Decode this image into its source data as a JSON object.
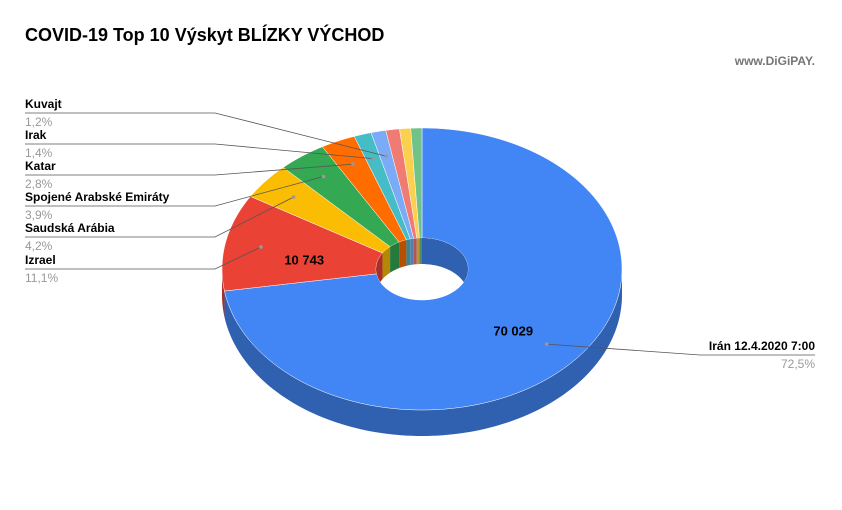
{
  "chart_data": {
    "type": "pie",
    "title": "COVID-19 Top 10 Výskyt BLÍZKY VÝCHOD",
    "watermark": "www.DiGiPAY.",
    "categories": [
      "Irán 12.4.2020  7:00",
      "Izrael",
      "Saudská Arábia",
      "Spojené Arabské Emiráty",
      "Katar",
      "Irak",
      "Kuvajt",
      null,
      null,
      null
    ],
    "values": [
      72.5,
      11.1,
      4.2,
      3.9,
      2.8,
      1.4,
      1.2,
      1.1,
      0.9,
      0.9
    ],
    "value_labels": [
      "72,5%",
      "11,1%",
      "4,2%",
      "3,9%",
      "2,8%",
      "1,4%",
      "1,2%",
      null,
      null,
      null
    ],
    "counts": [
      70029,
      10743,
      null,
      null,
      null,
      null,
      null,
      null,
      null,
      null
    ],
    "count_labels": [
      "70 029",
      "10 743",
      null,
      null,
      null,
      null,
      null,
      null,
      null,
      null
    ],
    "colors": [
      "#4285f4",
      "#ea4335",
      "#fbbc04",
      "#34a853",
      "#ff6d01",
      "#46bdc6",
      "#7baaf7",
      "#f07b72",
      "#fcd04f",
      "#71c287"
    ],
    "donut": true,
    "three_d": true
  }
}
